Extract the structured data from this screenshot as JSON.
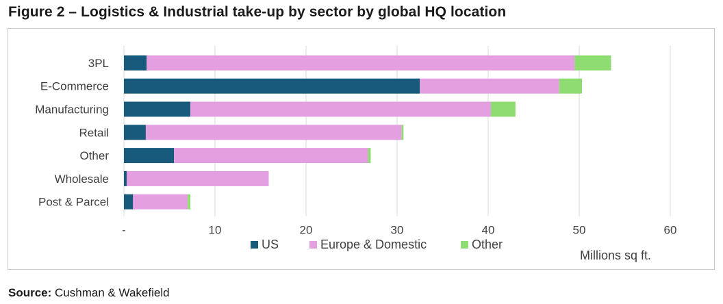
{
  "title": "Figure 2 – Logistics & Industrial take-up by sector by global HQ location",
  "source": {
    "label": "Source:",
    "text": " Cushman & Wakefield"
  },
  "colors": {
    "US": "#175a7c",
    "Europe & Domestic": "#e49fe0",
    "Other": "#8fdc72",
    "grid": "#d9d9d9",
    "text": "#404040"
  },
  "chart_data": {
    "type": "bar",
    "orientation": "horizontal",
    "stacked": true,
    "categories": [
      "3PL",
      "E-Commerce",
      "Manufacturing",
      "Retail",
      "Other",
      "Wholesale",
      "Post & Parcel"
    ],
    "series": [
      {
        "name": "US",
        "values": [
          2.5,
          32.5,
          7.3,
          2.4,
          5.5,
          0.3,
          1.0
        ]
      },
      {
        "name": "Europe & Domestic",
        "values": [
          47.0,
          15.3,
          33.0,
          28.1,
          21.3,
          15.6,
          6.0
        ]
      },
      {
        "name": "Other",
        "values": [
          4.0,
          2.5,
          2.7,
          0.2,
          0.3,
          0.0,
          0.3
        ]
      }
    ],
    "xlim": [
      0,
      60
    ],
    "xticks": [
      0,
      10,
      20,
      30,
      40,
      50,
      60
    ],
    "xtick_labels": [
      "-",
      "10",
      "20",
      "30",
      "40",
      "50",
      "60"
    ],
    "xlabel": "Millions sq ft.",
    "ylabel": "",
    "grid": "vertical",
    "legend_position": "bottom"
  }
}
